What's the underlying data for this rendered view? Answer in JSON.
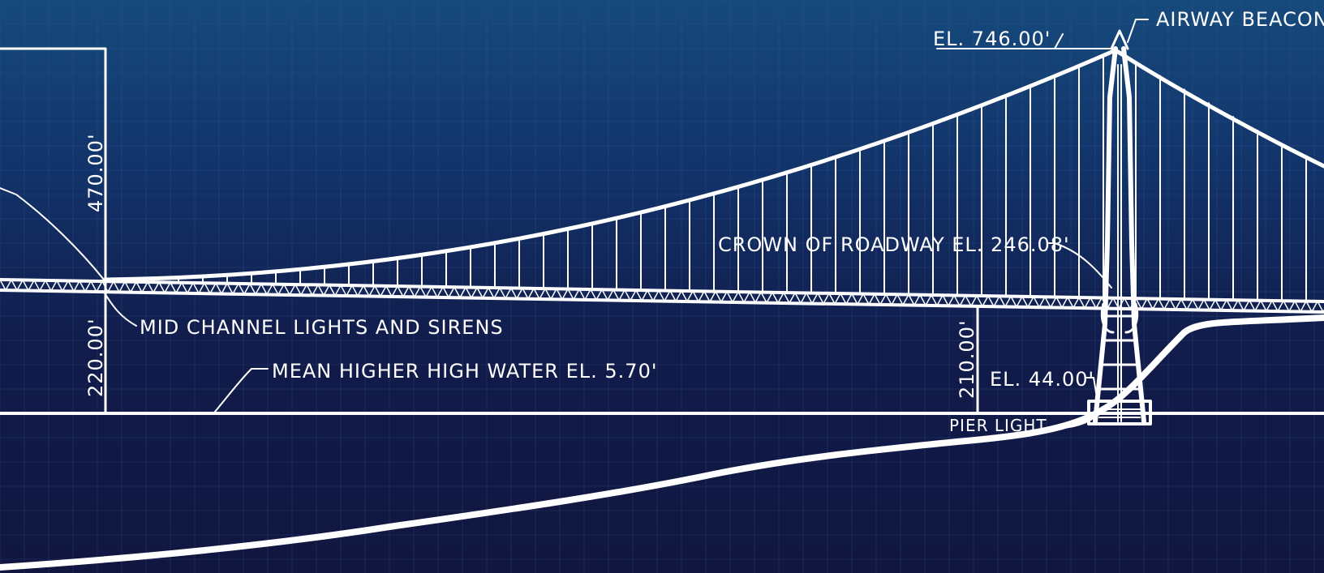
{
  "colors": {
    "background_top": "#164a7c",
    "background_bottom": "#10163f",
    "grid": "#3a5e9a",
    "ink": "#ffffff"
  },
  "annotations": {
    "airway_beacon": "AIRWAY BEACON",
    "tower_top_elevation": "EL. 746.00'",
    "roadway_crown": "CROWN OF ROADWAY EL. 246.08'",
    "mid_channel": "MID CHANNEL LIGHTS AND SIRENS",
    "mean_water": "MEAN HIGHER HIGH WATER EL. 5.70'",
    "pier_top_elevation": "EL. 44.00'",
    "pier_light": "PIER LIGHT"
  },
  "dimensions": {
    "cable_height": "470.00'",
    "clearance_left": "220.00'",
    "clearance_right": "210.00'"
  }
}
